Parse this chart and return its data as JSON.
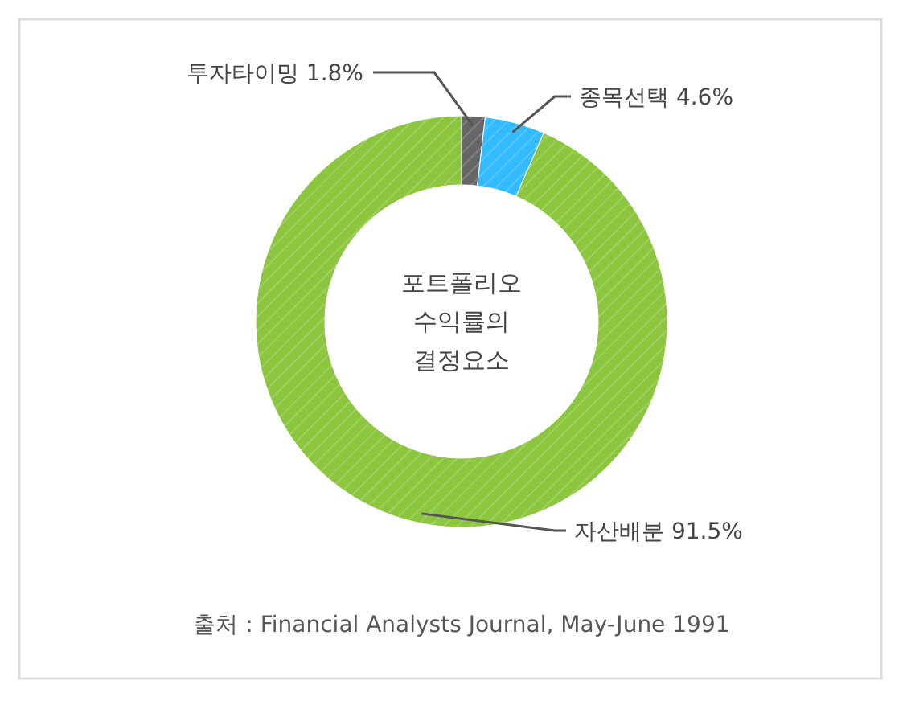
{
  "chart_data": {
    "type": "donut",
    "title": "포트폴리오\n수익률의\n결정요소",
    "categories": [
      "투자타이밍",
      "종목선택",
      "자산배분"
    ],
    "values": [
      1.8,
      4.6,
      91.5
    ],
    "colors": [
      "#666666",
      "#33bbff",
      "#8cc63f"
    ],
    "value_labels": [
      "1.8%",
      "4.6%",
      "91.5%"
    ],
    "annotations": [
      "출처 : Financial Analysts Journal, May-June 1991"
    ]
  }
}
